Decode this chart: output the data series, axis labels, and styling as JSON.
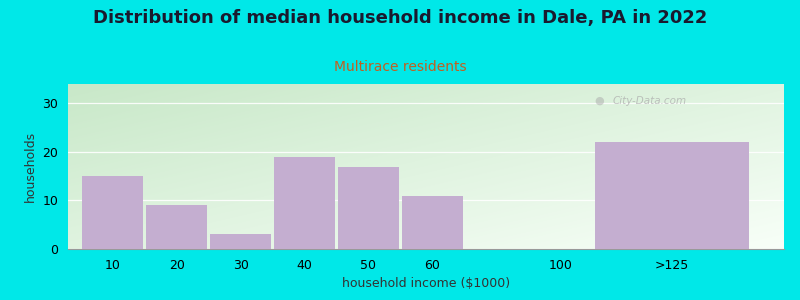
{
  "title": "Distribution of median household income in Dale, PA in 2022",
  "subtitle": "Multirace residents",
  "xlabel": "household income ($1000)",
  "ylabel": "households",
  "bar_color": "#c4aed0",
  "outer_bg": "#00e8e8",
  "gradient_top_left": "#c8e8c8",
  "gradient_bottom_right": "#f8fff8",
  "categories": [
    "10",
    "20",
    "30",
    "40",
    "50",
    "60",
    "100",
    ">125"
  ],
  "values": [
    15,
    9,
    3,
    19,
    17,
    11,
    0,
    22
  ],
  "bar_positions": [
    0,
    1,
    2,
    3,
    4,
    5,
    7,
    8
  ],
  "bar_widths": [
    1,
    1,
    1,
    1,
    1,
    1,
    1,
    2.5
  ],
  "xlim": [
    -0.2,
    11.0
  ],
  "ylim": [
    0,
    34
  ],
  "yticks": [
    0,
    10,
    20,
    30
  ],
  "watermark": "City-Data.com",
  "title_fontsize": 13,
  "subtitle_fontsize": 10,
  "axis_label_fontsize": 9,
  "tick_fontsize": 9,
  "title_color": "#1a1a2e",
  "subtitle_color": "#c06020"
}
